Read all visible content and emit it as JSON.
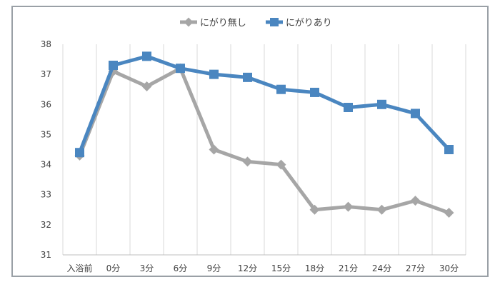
{
  "chart_data": {
    "type": "line",
    "categories": [
      "入浴前",
      "0分",
      "3分",
      "6分",
      "9分",
      "12分",
      "15分",
      "18分",
      "21分",
      "24分",
      "27分",
      "30分"
    ],
    "series": [
      {
        "name": "にがり無し",
        "color": "#a6a6a6",
        "marker": "diamond",
        "values": [
          34.3,
          37.1,
          36.6,
          37.2,
          34.5,
          34.1,
          34.0,
          32.5,
          32.6,
          32.5,
          32.8,
          32.4
        ]
      },
      {
        "name": "にがりあり",
        "color": "#4a86c0",
        "marker": "square",
        "values": [
          34.4,
          37.3,
          37.6,
          37.2,
          37.0,
          36.9,
          36.5,
          36.4,
          35.9,
          36.0,
          35.7,
          34.5
        ]
      }
    ],
    "title": "",
    "xlabel": "",
    "ylabel": "",
    "ylim": [
      31,
      38
    ],
    "yticks": [
      31,
      32,
      33,
      34,
      35,
      36,
      37,
      38
    ],
    "grid": "vertical",
    "legend": "top-center"
  }
}
